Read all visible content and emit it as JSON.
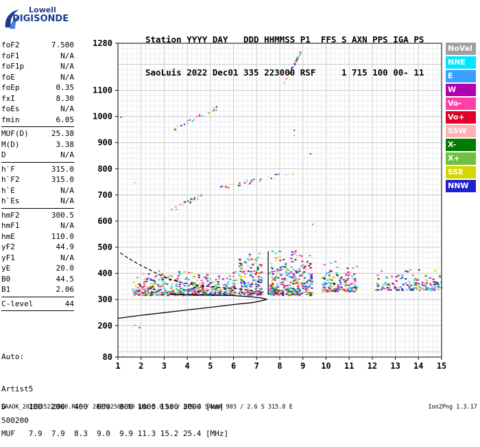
{
  "logo": {
    "line1": "Lowell",
    "line2": "DIGISONDE"
  },
  "header": {
    "line1": "Station YYYY DAY   DDD HHMMSS P1  FFS S AXN PPS IGA PS",
    "line2": "SaoLuis 2022 Dec01 335 223000 RSF     1 715 100 00- 11"
  },
  "params_group1": [
    {
      "name": "foF2",
      "value": "7.500"
    },
    {
      "name": "foF1",
      "value": "N/A"
    },
    {
      "name": "foF1p",
      "value": "N/A"
    },
    {
      "name": "foE",
      "value": "N/A"
    },
    {
      "name": "foEp",
      "value": "0.35"
    },
    {
      "name": "fxI",
      "value": "8.30"
    },
    {
      "name": "foEs",
      "value": "N/A"
    },
    {
      "name": "fmin",
      "value": "6.05"
    }
  ],
  "params_group2": [
    {
      "name": "MUF(D)",
      "value": "25.38"
    },
    {
      "name": "M(D)",
      "value": "3.38"
    },
    {
      "name": "D",
      "value": "N/A"
    }
  ],
  "params_group3": [
    {
      "name": "h`F",
      "value": "315.0"
    },
    {
      "name": "h`F2",
      "value": "315.0"
    },
    {
      "name": "h`E",
      "value": "N/A"
    },
    {
      "name": "h`Es",
      "value": "N/A"
    }
  ],
  "params_group4": [
    {
      "name": "hmF2",
      "value": "300.5"
    },
    {
      "name": "hmF1",
      "value": "N/A"
    },
    {
      "name": "hmE",
      "value": "110.0"
    },
    {
      "name": "yF2",
      "value": "44.9"
    },
    {
      "name": "yF1",
      "value": "N/A"
    },
    {
      "name": "yE",
      "value": "20.0"
    },
    {
      "name": "B0",
      "value": "44.5"
    },
    {
      "name": "B1",
      "value": "2.06"
    }
  ],
  "params_group5": [
    {
      "name": "C-level",
      "value": "44"
    }
  ],
  "notes": {
    "line1": "Auto:",
    "line2": "Artist5",
    "line3": "500200"
  },
  "muf_table": {
    "d_line": "D     100  200  400  600  800 1000 1500 3000 [km]",
    "muf_line": "MUF   7.9  7.9  8.3  9.0  9.9 11.3 15.2 25.4 [MHz]"
  },
  "footer": {
    "left": "SAAOK_2022335223000.RSF / 280fx256h 50 kHz 5.0 km / DPS-4 SAA0K 903 / 2.6 S 315.8 E",
    "right": "Ion2Png 1.3.17"
  },
  "legend": [
    {
      "label": "NoVal",
      "color": "#a0a0a0"
    },
    {
      "label": "NNE",
      "color": "#00e5ff"
    },
    {
      "label": "E",
      "color": "#3aa0ff"
    },
    {
      "label": "W",
      "color": "#b000b0"
    },
    {
      "label": "Vo-",
      "color": "#ff3fa8"
    },
    {
      "label": "Vo+",
      "color": "#e0002a"
    },
    {
      "label": "SSW",
      "color": "#ffb0b0"
    },
    {
      "label": "X-",
      "color": "#007a00"
    },
    {
      "label": "X+",
      "color": "#6fbf40"
    },
    {
      "label": "SSE",
      "color": "#d6d600"
    },
    {
      "label": "NNW",
      "color": "#2020d0"
    }
  ],
  "chart_data": {
    "type": "scatter",
    "xlim": [
      1,
      15
    ],
    "ylim": [
      80,
      1280
    ],
    "x_ticks": [
      "1",
      "2",
      "3",
      "4",
      "5",
      "6",
      "7",
      "8",
      "9",
      "10",
      "11",
      "12",
      "13",
      "14",
      "15"
    ],
    "y_ticks": [
      "80",
      "200",
      "300",
      "400",
      "500",
      "600",
      "700",
      "800",
      "900",
      "1000",
      "1100",
      "1280"
    ],
    "grid": true,
    "clusters": [
      {
        "fmin": 1.6,
        "fmax": 6.1,
        "hmin": 318,
        "hmax": 420,
        "n": 520
      },
      {
        "fmin": 6.2,
        "fmax": 7.2,
        "hmin": 318,
        "hmax": 500,
        "n": 170
      },
      {
        "fmin": 7.5,
        "fmax": 9.4,
        "hmin": 318,
        "hmax": 510,
        "n": 330
      },
      {
        "fmin": 9.8,
        "fmax": 11.3,
        "hmin": 332,
        "hmax": 460,
        "n": 160
      },
      {
        "fmin": 12.1,
        "fmax": 15.0,
        "hmin": 338,
        "hmax": 430,
        "n": 150
      }
    ],
    "echo_lines": [
      {
        "f0": 3.3,
        "h0": 645,
        "f1": 4.6,
        "h1": 700
      },
      {
        "f0": 5.4,
        "h0": 728,
        "f1": 8.6,
        "h1": 790
      },
      {
        "f0": 3.3,
        "h0": 950,
        "f1": 5.4,
        "h1": 1040
      },
      {
        "f0": 8.1,
        "h0": 1120,
        "f1": 8.9,
        "h1": 1250
      }
    ],
    "sparse_points": [
      {
        "f": 1.2,
        "h": 85
      },
      {
        "f": 1.7,
        "h": 205
      },
      {
        "f": 1.9,
        "h": 195
      },
      {
        "f": 1.7,
        "h": 750
      },
      {
        "f": 1.1,
        "h": 1000
      },
      {
        "f": 9.3,
        "h": 860
      },
      {
        "f": 8.6,
        "h": 950
      },
      {
        "f": 8.6,
        "h": 930
      },
      {
        "f": 9.4,
        "h": 590
      }
    ],
    "profile_curve": [
      [
        1.0,
        228
      ],
      [
        2.0,
        240
      ],
      [
        3.0,
        250
      ],
      [
        4.0,
        260
      ],
      [
        5.0,
        270
      ],
      [
        6.0,
        281
      ],
      [
        6.8,
        288
      ],
      [
        7.2,
        295
      ],
      [
        7.45,
        300.5
      ],
      [
        7.2,
        306
      ],
      [
        6.8,
        310
      ],
      [
        6.0,
        315
      ],
      [
        5.0,
        317
      ],
      [
        4.0,
        318
      ],
      [
        3.2,
        320
      ]
    ],
    "dashed_curve": [
      [
        1.1,
        478
      ],
      [
        1.5,
        455
      ],
      [
        2.0,
        430
      ],
      [
        2.5,
        408
      ],
      [
        3.0,
        385
      ],
      [
        3.6,
        368
      ],
      [
        4.2,
        358
      ],
      [
        5.0,
        350
      ],
      [
        6.0,
        342
      ],
      [
        6.5,
        338
      ],
      [
        7.0,
        332
      ],
      [
        7.3,
        328
      ]
    ],
    "fof2_marker": {
      "f": 7.5,
      "h1": 318,
      "h2": 485
    }
  }
}
